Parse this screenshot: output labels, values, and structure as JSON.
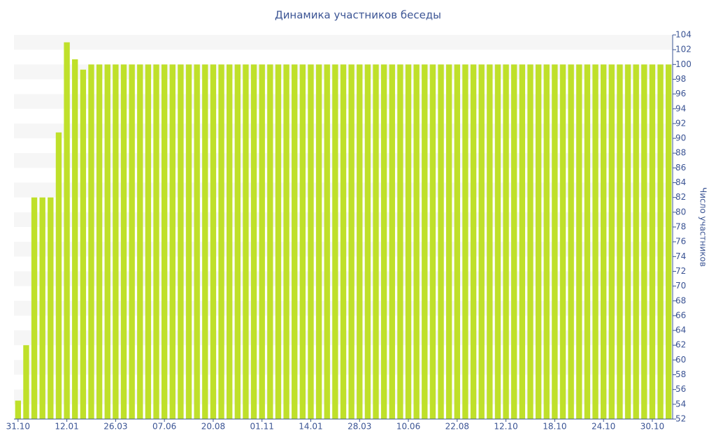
{
  "chart_data": {
    "type": "bar",
    "title": "Динамика участников беседы",
    "y_label": "Число участников",
    "categories": [
      "31.10",
      null,
      null,
      null,
      null,
      null,
      "12.01",
      null,
      null,
      null,
      null,
      null,
      "26.03",
      null,
      null,
      null,
      null,
      null,
      "07.06",
      null,
      null,
      null,
      null,
      null,
      "20.08",
      null,
      null,
      null,
      null,
      null,
      "01.11",
      null,
      null,
      null,
      null,
      null,
      "14.01",
      null,
      null,
      null,
      null,
      null,
      "28.03",
      null,
      null,
      null,
      null,
      null,
      "10.06",
      null,
      null,
      null,
      null,
      null,
      "22.08",
      null,
      null,
      null,
      null,
      null,
      "12.10",
      null,
      null,
      null,
      null,
      null,
      "18.10",
      null,
      null,
      null,
      null,
      null,
      "24.10",
      null,
      null,
      null,
      null,
      null,
      "30.10",
      null,
      null
    ],
    "values": [
      54.5,
      62,
      82,
      82,
      82,
      90.8,
      103,
      100.7,
      99.3,
      100,
      100,
      100,
      100,
      100,
      100,
      100,
      100,
      100,
      100,
      100,
      100,
      100,
      100,
      100,
      100,
      100,
      100,
      100,
      100,
      100,
      100,
      100,
      100,
      100,
      100,
      100,
      100,
      100,
      100,
      100,
      100,
      100,
      100,
      100,
      100,
      100,
      100,
      100,
      100,
      100,
      100,
      100,
      100,
      100,
      100,
      100,
      100,
      100,
      100,
      100,
      100,
      100,
      100,
      100,
      100,
      100,
      100,
      100,
      100,
      100,
      100,
      100,
      100,
      100,
      100,
      100,
      100,
      100,
      100,
      100,
      100
    ],
    "color": "#bfe02a",
    "ylim": [
      52,
      104
    ],
    "yticks": [
      52,
      54,
      56,
      58,
      60,
      62,
      64,
      66,
      68,
      70,
      72,
      74,
      76,
      78,
      80,
      82,
      84,
      86,
      88,
      90,
      92,
      94,
      96,
      98,
      100,
      102,
      104
    ],
    "grid": true
  }
}
